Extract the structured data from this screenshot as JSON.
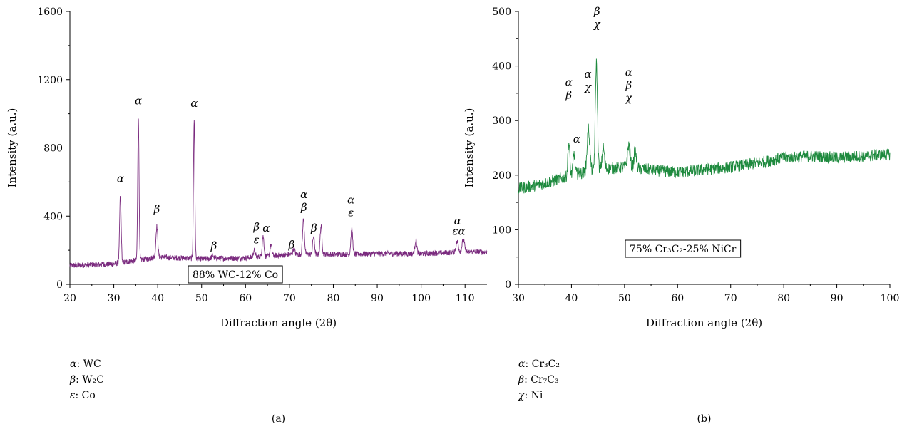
{
  "chart_data": [
    {
      "type": "line",
      "panel_label": "(a)",
      "xlabel": "Diffraction angle (2θ)",
      "ylabel": "Intensity (a.u.)",
      "xlim": [
        20,
        115
      ],
      "ylim": [
        0,
        1600
      ],
      "x_ticks": [
        20,
        30,
        40,
        50,
        60,
        70,
        80,
        90,
        100,
        110
      ],
      "y_ticks": [
        0,
        400,
        800,
        1200,
        1600
      ],
      "color": "#7a2a7e",
      "box_label": "88% WC-12% Co",
      "baseline": [
        [
          20,
          110
        ],
        [
          30,
          120
        ],
        [
          40,
          160
        ],
        [
          50,
          150
        ],
        [
          60,
          155
        ],
        [
          70,
          175
        ],
        [
          80,
          175
        ],
        [
          90,
          180
        ],
        [
          100,
          180
        ],
        [
          110,
          190
        ],
        [
          115,
          190
        ]
      ],
      "noise": 16,
      "peaks": [
        {
          "x": 31.5,
          "y": 520,
          "w": 0.25
        },
        {
          "x": 35.6,
          "y": 960,
          "w": 0.22
        },
        {
          "x": 39.8,
          "y": 340,
          "w": 0.3
        },
        {
          "x": 48.3,
          "y": 970,
          "w": 0.22
        },
        {
          "x": 52.5,
          "y": 170,
          "w": 0.3
        },
        {
          "x": 62.0,
          "y": 200,
          "w": 0.3
        },
        {
          "x": 64.0,
          "y": 280,
          "w": 0.3
        },
        {
          "x": 65.8,
          "y": 230,
          "w": 0.3
        },
        {
          "x": 71.0,
          "y": 210,
          "w": 0.3
        },
        {
          "x": 73.2,
          "y": 380,
          "w": 0.3
        },
        {
          "x": 75.5,
          "y": 280,
          "w": 0.3
        },
        {
          "x": 77.2,
          "y": 340,
          "w": 0.3
        },
        {
          "x": 84.2,
          "y": 320,
          "w": 0.3
        },
        {
          "x": 98.8,
          "y": 260,
          "w": 0.3
        },
        {
          "x": 108.2,
          "y": 250,
          "w": 0.4
        },
        {
          "x": 109.6,
          "y": 260,
          "w": 0.4
        }
      ],
      "peak_labels": [
        {
          "x": 31.5,
          "y": 600,
          "lines": [
            "α"
          ]
        },
        {
          "x": 35.6,
          "y": 1055,
          "lines": [
            "α"
          ]
        },
        {
          "x": 39.8,
          "y": 420,
          "lines": [
            "β"
          ]
        },
        {
          "x": 48.3,
          "y": 1040,
          "lines": [
            "α"
          ]
        },
        {
          "x": 52.8,
          "y": 205,
          "lines": [
            "β"
          ]
        },
        {
          "x": 62.5,
          "y": 240,
          "lines": [
            "β",
            "ε"
          ]
        },
        {
          "x": 64.7,
          "y": 310,
          "lines": [
            "α"
          ]
        },
        {
          "x": 70.5,
          "y": 210,
          "lines": [
            "β"
          ]
        },
        {
          "x": 73.3,
          "y": 430,
          "lines": [
            "α",
            "β"
          ]
        },
        {
          "x": 75.6,
          "y": 310,
          "lines": [
            "β"
          ]
        },
        {
          "x": 84.0,
          "y": 400,
          "lines": [
            "α",
            "ε"
          ]
        },
        {
          "x": 108.3,
          "y": 350,
          "lines": [
            "α"
          ]
        },
        {
          "x": 108.6,
          "y": 290,
          "lines": [
            "εα"
          ]
        }
      ],
      "legend": [
        {
          "sym": "α",
          "text": ": WC"
        },
        {
          "sym": "β",
          "text": ": W₂C"
        },
        {
          "sym": "ε",
          "text": ": Co"
        }
      ]
    },
    {
      "type": "line",
      "panel_label": "(b)",
      "xlabel": "Diffraction angle (2θ)",
      "ylabel": "Intensity (a.u.)",
      "xlim": [
        30,
        100
      ],
      "ylim": [
        0,
        500
      ],
      "x_ticks": [
        30,
        40,
        50,
        60,
        70,
        80,
        90,
        100
      ],
      "y_ticks": [
        0,
        100,
        200,
        300,
        400,
        500
      ],
      "color": "#1e8a3e",
      "box_label": "75% Cr₃C₂-25% NiCr",
      "baseline": [
        [
          30,
          175
        ],
        [
          35,
          185
        ],
        [
          40,
          200
        ],
        [
          45,
          210
        ],
        [
          50,
          215
        ],
        [
          55,
          210
        ],
        [
          60,
          205
        ],
        [
          65,
          210
        ],
        [
          70,
          215
        ],
        [
          75,
          222
        ],
        [
          80,
          232
        ],
        [
          85,
          235
        ],
        [
          90,
          232
        ],
        [
          95,
          235
        ],
        [
          100,
          238
        ]
      ],
      "noise": 11,
      "peaks": [
        {
          "x": 39.5,
          "y": 260,
          "w": 0.25
        },
        {
          "x": 40.5,
          "y": 240,
          "w": 0.25
        },
        {
          "x": 43.2,
          "y": 285,
          "w": 0.35
        },
        {
          "x": 44.7,
          "y": 405,
          "w": 0.28
        },
        {
          "x": 46.0,
          "y": 250,
          "w": 0.3
        },
        {
          "x": 50.8,
          "y": 255,
          "w": 0.35
        },
        {
          "x": 52.0,
          "y": 245,
          "w": 0.3
        }
      ],
      "peak_labels": [
        {
          "x": 39.5,
          "y": 340,
          "lines": [
            "α",
            "β"
          ]
        },
        {
          "x": 41.0,
          "y": 260,
          "lines": [
            "α"
          ]
        },
        {
          "x": 43.1,
          "y": 355,
          "lines": [
            "α",
            "χ"
          ]
        },
        {
          "x": 44.8,
          "y": 470,
          "lines": [
            "β",
            "χ"
          ]
        },
        {
          "x": 50.8,
          "y": 335,
          "lines": [
            "α",
            "β",
            "χ"
          ]
        }
      ],
      "legend": [
        {
          "sym": "α",
          "text": ": Cr₃C₂"
        },
        {
          "sym": "β",
          "text": ": Cr₇C₃"
        },
        {
          "sym": "χ",
          "text": ": Ni"
        }
      ]
    }
  ]
}
